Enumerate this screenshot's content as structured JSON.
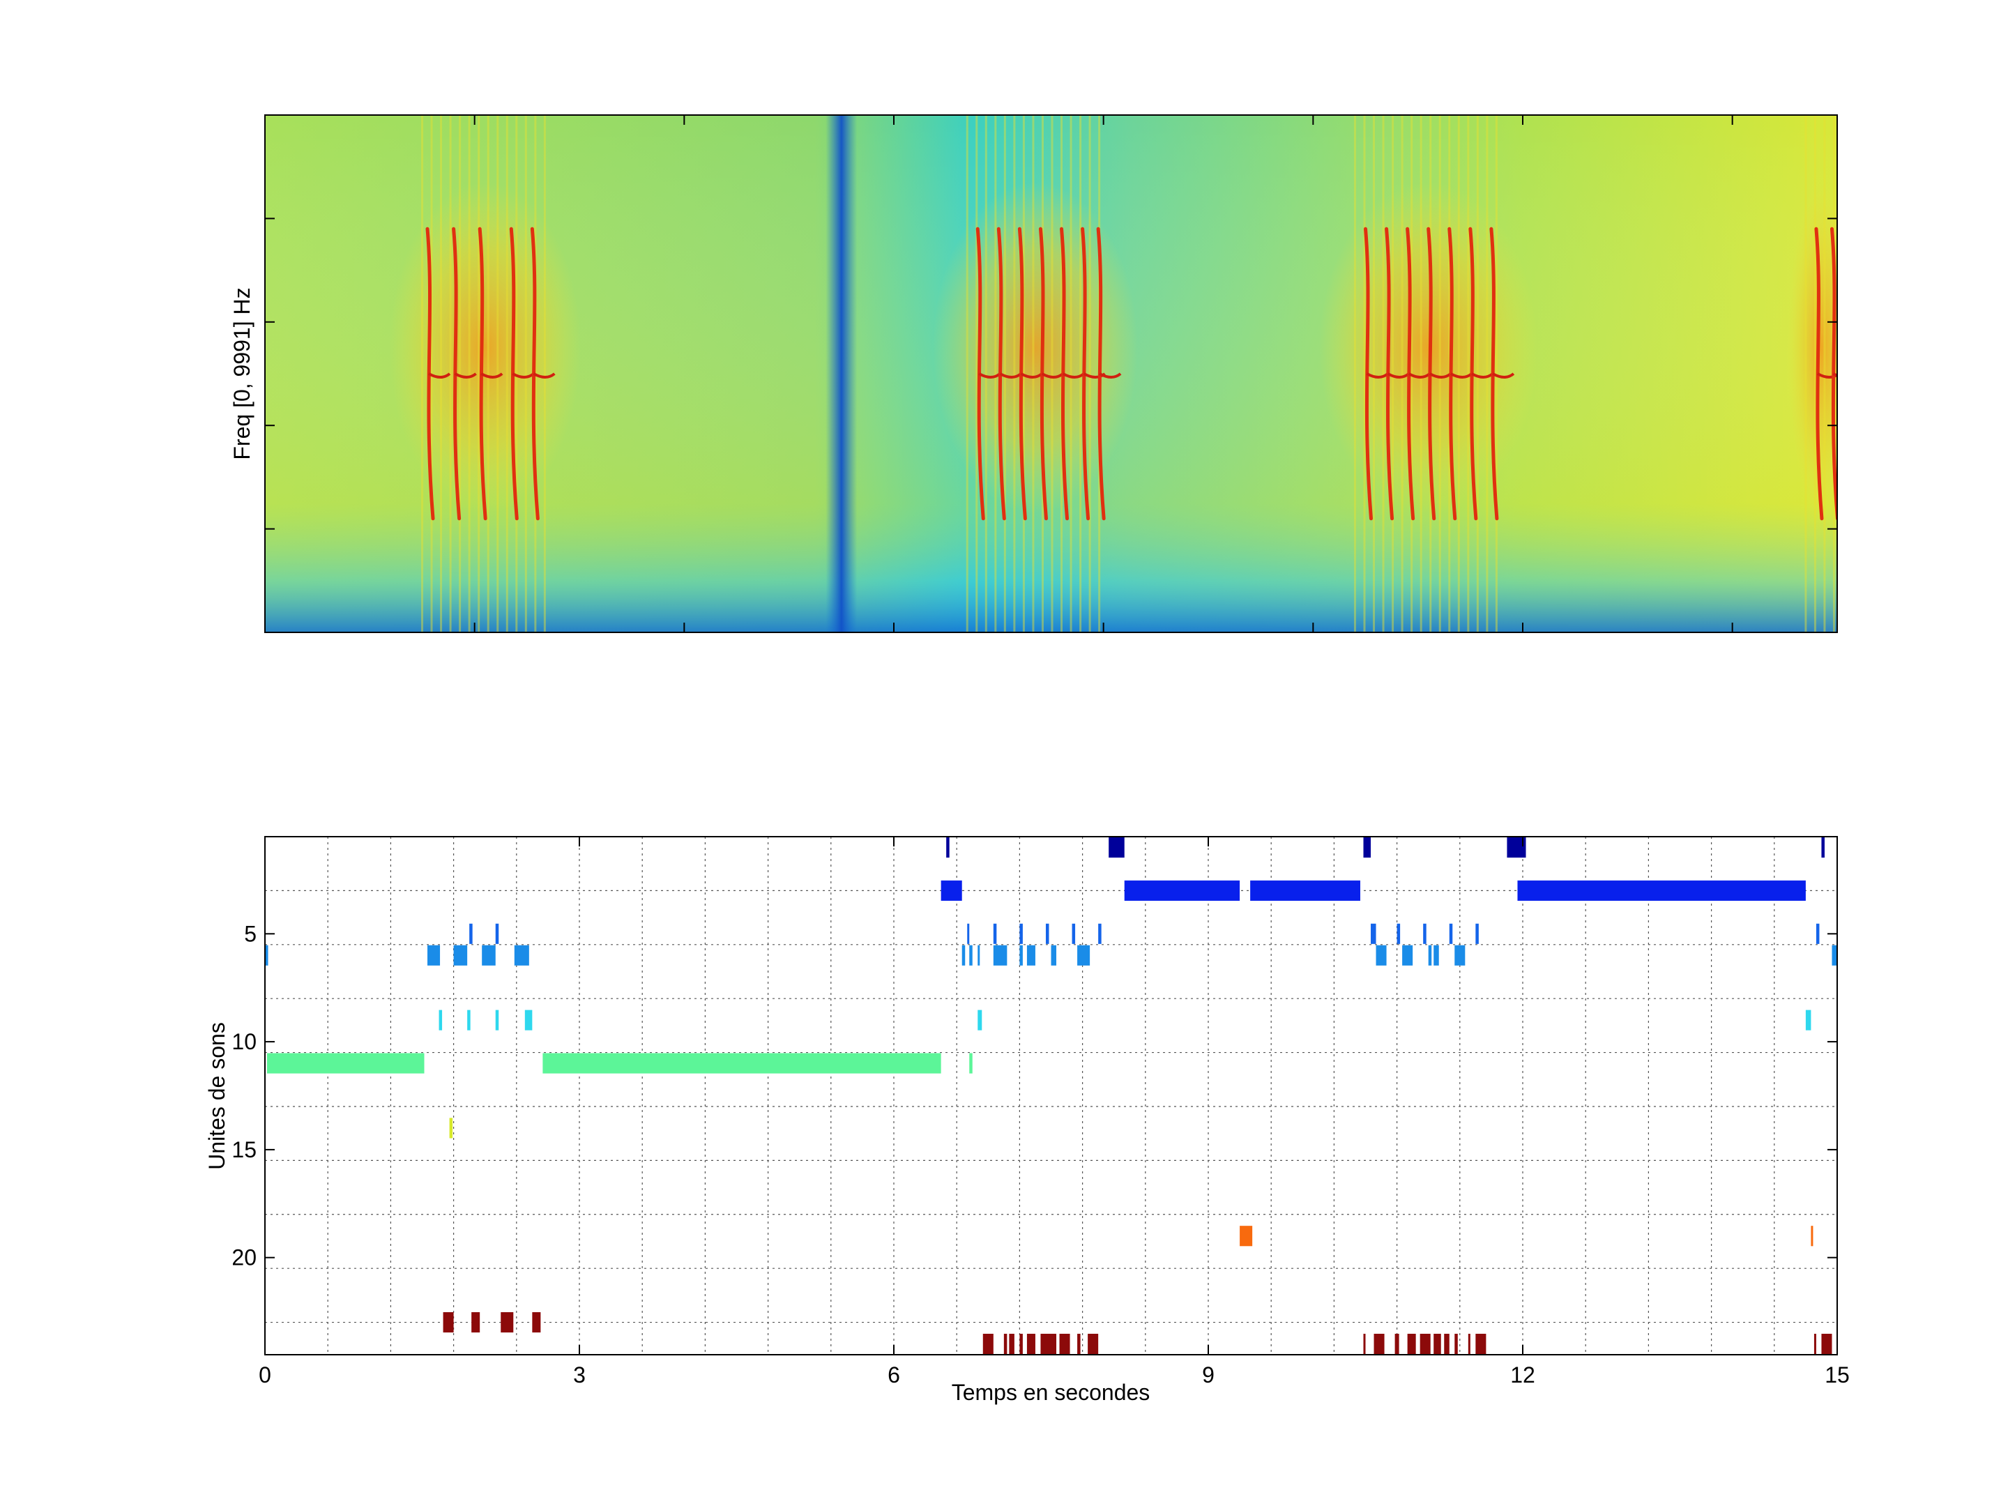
{
  "chart_data": [
    {
      "type": "heatmap",
      "title": "",
      "ylabel": "Freq [0, 9991] Hz",
      "xlabel": "",
      "xlim": [
        0,
        15
      ],
      "ylim": [
        0,
        9991
      ],
      "y_tick_count": 5,
      "x_ticks": [
        0,
        2,
        4,
        6,
        8,
        10,
        12,
        14
      ],
      "colormap": "jet",
      "colors": {
        "background_mid": "#b8e24a",
        "noise_low": "#1ec8e0",
        "dark_band": "#1570d8",
        "call": "#e03010"
      },
      "call_groups": [
        {
          "start": 1.5,
          "end": 2.7,
          "components": [
            1.55,
            1.8,
            2.05,
            2.35,
            2.55
          ]
        },
        {
          "start": 6.7,
          "end": 8.0,
          "components": [
            6.8,
            7.0,
            7.2,
            7.4,
            7.6,
            7.8,
            7.95
          ]
        },
        {
          "start": 10.4,
          "end": 11.8,
          "components": [
            10.5,
            10.7,
            10.9,
            11.1,
            11.3,
            11.5,
            11.7
          ]
        },
        {
          "start": 14.7,
          "end": 15.0,
          "components": [
            14.8,
            14.95
          ]
        }
      ],
      "low_energy_band": {
        "time": 5.5,
        "width": 0.15
      }
    },
    {
      "type": "bar",
      "subtype": "event-raster",
      "xlabel": "Temps en secondes",
      "ylabel": "Unites de sons",
      "xlim": [
        0,
        15
      ],
      "ylim": [
        0.5,
        24.5
      ],
      "x_ticks": [
        0,
        3,
        6,
        9,
        12,
        15
      ],
      "y_ticks": [
        5,
        10,
        15,
        20
      ],
      "grid": true,
      "series": [
        {
          "unit": 1,
          "color": "#00009a",
          "intervals": [
            [
              6.5,
              6.53
            ],
            [
              8.05,
              8.2
            ],
            [
              10.48,
              10.55
            ],
            [
              11.85,
              12.03
            ],
            [
              14.85,
              14.88
            ]
          ]
        },
        {
          "unit": 3,
          "color": "#0820ec",
          "intervals": [
            [
              6.45,
              6.65
            ],
            [
              8.2,
              9.3
            ],
            [
              9.4,
              10.45
            ],
            [
              11.95,
              14.7
            ]
          ]
        },
        {
          "unit": 5,
          "color": "#1464ea",
          "intervals": [
            [
              1.95,
              1.98
            ],
            [
              2.2,
              2.23
            ],
            [
              6.7,
              6.72
            ],
            [
              6.95,
              6.98
            ],
            [
              7.2,
              7.23
            ],
            [
              7.45,
              7.48
            ],
            [
              7.7,
              7.73
            ],
            [
              7.95,
              7.98
            ],
            [
              10.55,
              10.6
            ],
            [
              10.8,
              10.83
            ],
            [
              11.05,
              11.08
            ],
            [
              11.3,
              11.33
            ],
            [
              11.55,
              11.58
            ],
            [
              14.8,
              14.83
            ]
          ]
        },
        {
          "unit": 6,
          "color": "#1a8ce8",
          "intervals": [
            [
              0.0,
              0.03
            ],
            [
              1.55,
              1.67
            ],
            [
              1.8,
              1.93
            ],
            [
              2.07,
              2.2
            ],
            [
              2.38,
              2.52
            ],
            [
              6.65,
              6.68
            ],
            [
              6.72,
              6.75
            ],
            [
              6.8,
              6.82
            ],
            [
              6.95,
              7.08
            ],
            [
              7.2,
              7.23
            ],
            [
              7.27,
              7.35
            ],
            [
              7.5,
              7.55
            ],
            [
              7.75,
              7.87
            ],
            [
              10.6,
              10.7
            ],
            [
              10.85,
              10.95
            ],
            [
              11.1,
              11.13
            ],
            [
              11.15,
              11.2
            ],
            [
              11.35,
              11.45
            ],
            [
              14.95,
              15.0
            ]
          ]
        },
        {
          "unit": 9,
          "color": "#2ed8ee",
          "intervals": [
            [
              1.66,
              1.69
            ],
            [
              1.93,
              1.96
            ],
            [
              2.2,
              2.23
            ],
            [
              2.48,
              2.55
            ],
            [
              6.8,
              6.84
            ],
            [
              14.7,
              14.75
            ]
          ]
        },
        {
          "unit": 11,
          "color": "#5cf598",
          "intervals": [
            [
              0.02,
              1.52
            ],
            [
              2.65,
              6.45
            ],
            [
              6.72,
              6.75
            ]
          ]
        },
        {
          "unit": 14,
          "color": "#d8ea2c",
          "intervals": [
            [
              1.76,
              1.79
            ]
          ]
        },
        {
          "unit": 19,
          "color": "#f86a0e",
          "intervals": [
            [
              9.3,
              9.42
            ],
            [
              14.75,
              14.77
            ]
          ]
        },
        {
          "unit": 23,
          "color": "#8c0a0a",
          "intervals": [
            [
              1.7,
              1.8
            ],
            [
              1.97,
              2.05
            ],
            [
              2.25,
              2.37
            ],
            [
              2.55,
              2.63
            ]
          ]
        },
        {
          "unit": 24,
          "color": "#8c0a0a",
          "intervals": [
            [
              6.85,
              6.95
            ],
            [
              7.05,
              7.08
            ],
            [
              7.1,
              7.15
            ],
            [
              7.2,
              7.23
            ],
            [
              7.27,
              7.35
            ],
            [
              7.4,
              7.55
            ],
            [
              7.58,
              7.68
            ],
            [
              7.75,
              7.78
            ],
            [
              7.85,
              7.95
            ],
            [
              10.48,
              10.5
            ],
            [
              10.58,
              10.68
            ],
            [
              10.78,
              10.82
            ],
            [
              10.9,
              10.98
            ],
            [
              11.02,
              11.12
            ],
            [
              11.15,
              11.22
            ],
            [
              11.25,
              11.3
            ],
            [
              11.35,
              11.38
            ],
            [
              11.48,
              11.5
            ],
            [
              11.55,
              11.65
            ],
            [
              14.78,
              14.8
            ],
            [
              14.85,
              14.95
            ]
          ]
        }
      ]
    }
  ]
}
